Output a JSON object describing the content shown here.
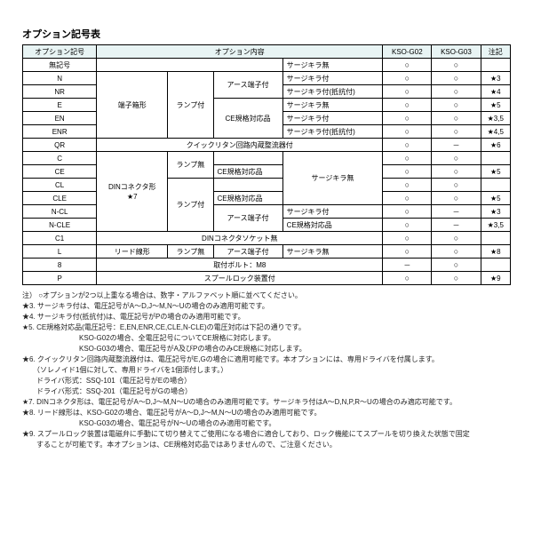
{
  "title": "オプション記号表",
  "header": {
    "code": "オプション記号",
    "content": "オプション内容",
    "g02": "KSO-G02",
    "g03": "KSO-G03",
    "note": "注記"
  },
  "circle": "○",
  "dash": "－",
  "star": "★",
  "rows": {
    "无記号": "無記号",
    "N": "N",
    "NR": "NR",
    "E": "E",
    "EN": "EN",
    "ENR": "ENR",
    "QR": "QR",
    "C": "C",
    "CE": "CE",
    "CL": "CL",
    "CLE": "CLE",
    "NCL": "N-CL",
    "NCLE": "N-CLE",
    "C1": "C1",
    "L": "L",
    "8": "8",
    "P": "P"
  },
  "content": {
    "terminal_box": "端子箱形",
    "lamp_on": "ランプ付",
    "lamp_off": "ランプ無",
    "earth": "アース端子付",
    "quick_return": "クイックリタン回路内蔵整流器付",
    "ce": "CE規格対応品",
    "surge_none": "サージキラ無",
    "surge_on": "サージキラ付",
    "surge_res": "サージキラ付(抵抗付)",
    "din": "DINコネクタ形",
    "din7": "★7",
    "din_sock": "DINコネクタソケット無",
    "lead": "リード線形",
    "bolt": "取付ボルト：M8",
    "spool": "スプールロック装置付"
  },
  "note_vals": {
    "n3": "★3",
    "n4": "★4",
    "n5": "★5",
    "n35": "★3,5",
    "n45": "★4,5",
    "n6": "★6",
    "n8": "★8",
    "n9": "★9"
  },
  "notes": {
    "lead": "注） ○オプションが2つ以上重なる場合は、数字・アルファベット順に並べてください。",
    "s3": "★3. サージキラ付は、電圧記号がA～D,J～M,N～Uの場合のみ適用可能です。",
    "s4": "★4. サージキラ付(抵抗付)は、電圧記号がPの場合のみ適用可能です。",
    "s5": "★5. CE規格対応品(電圧記号：E,EN,ENR,CE,CLE,N-CLE)の電圧対応は下記の通りです。",
    "s5b": "　　　　　　　　KSO-G02の場合、全電圧記号についてCE規格に対応します。",
    "s5c": "　　　　　　　　KSO-G03の場合、電圧記号がA及びPの場合のみCE規格に対応します。",
    "s6": "★6. クイックリタン回路内蔵整流器付は、電圧記号がE,Gの場合に適用可能です。本オプションには、専用ドライバを付属します。",
    "s6b": "　　（ソレノイド1個に対して、専用ドライバを1個添付します。）",
    "s6c": "　　ドライバ形式：SSQ-101（電圧記号がEの場合）",
    "s6d": "　　ドライバ形式：SSQ-201（電圧記号がGの場合）",
    "s7": "★7. DINコネクタ形は、電圧記号がA～D,J～M,N～Uの場合のみ適用可能です。サージキラ付はA～D,N,P,R～Uの場合のみ適応可能です。",
    "s8": "★8. リード線形は、KSO-G02の場合、電圧記号がA～D,J～M,N～Uの場合のみ適用可能です。",
    "s8b": "　　　　　　　　KSO-G03の場合、電圧記号がN～Uの場合のみ適用可能です。",
    "s9": "★9. スプールロック装置は電磁弁に手動にて切り替えてご使用になる場合に適合しており、ロック機能にてスプールを切り換えた状態で固定",
    "s9b": "　　することが可能です。本オプションは、CE規格対応品ではありませんので、ご注意ください。"
  }
}
